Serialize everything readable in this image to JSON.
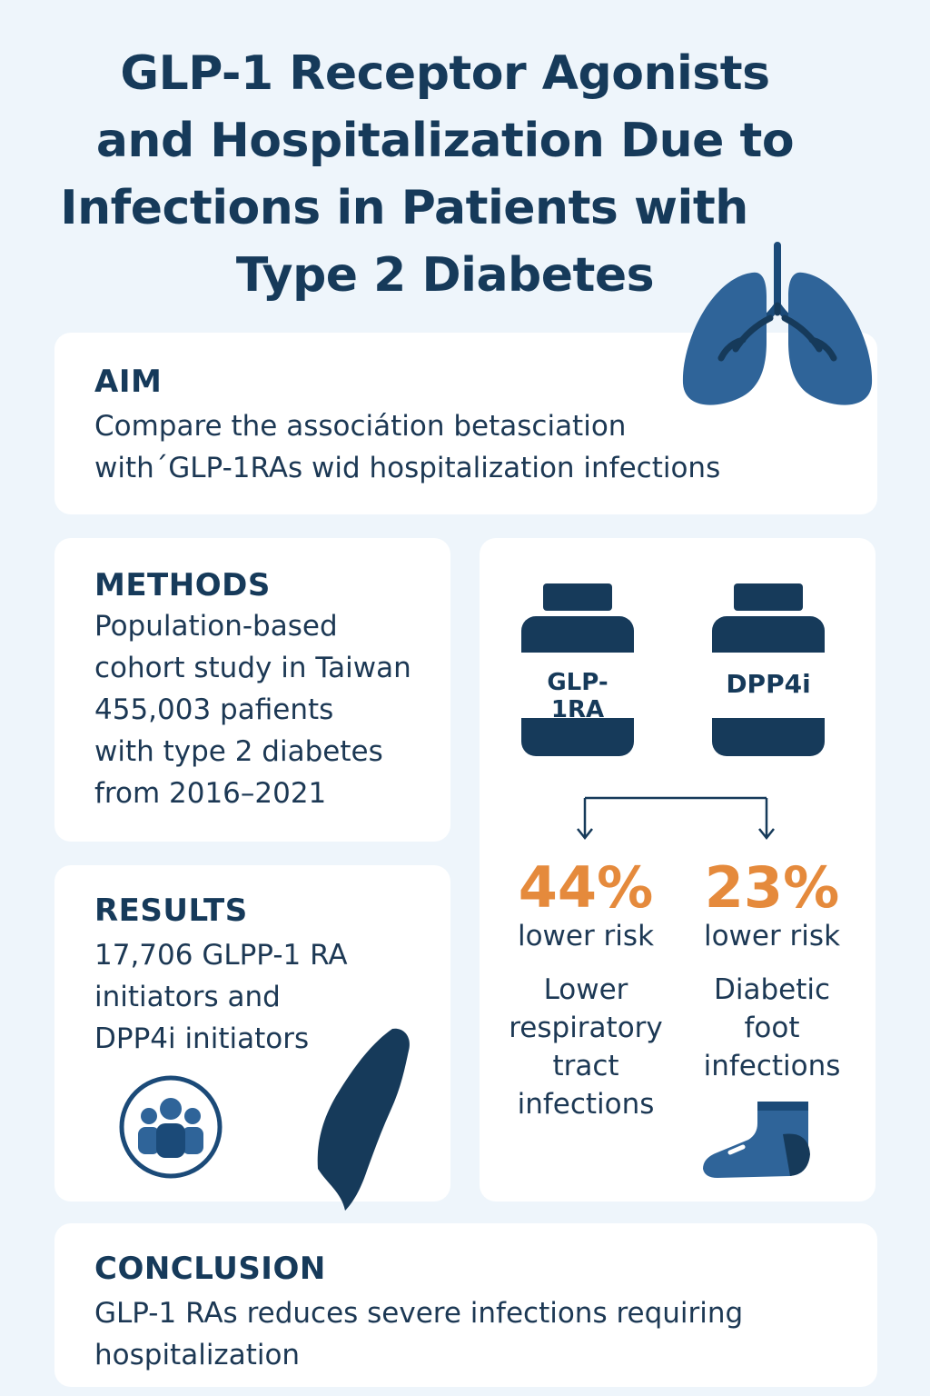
{
  "title": {
    "line1": "GLP-1 Receptor Agonists",
    "line2": "and Hospitalization Due to",
    "line3": "Infections in Patients with",
    "line4": "Type 2 Diabetes"
  },
  "aim": {
    "heading": "AIM",
    "line1": "Compare the associátion betasciation",
    "line2": "with´GLP-1RAs wid hospitalization infections"
  },
  "methods": {
    "heading": "METHODS",
    "line1": "Population-based",
    "line2": "cohort study in Taiwan",
    "line3": "455,003 pafients",
    "line4": "with type 2 diabetes",
    "line5": "from 2016–2021"
  },
  "results": {
    "heading": "RESULTS",
    "line1": "17,706 GLPP-1 RA",
    "line2": "initiators and",
    "line3": "DPP4i initiators"
  },
  "drugs": {
    "bottle1_label": "GLP-1RA",
    "bottle2_label": "DPP4i",
    "outcome1": {
      "pct": "44%",
      "risk": "lower risk",
      "line1": "Lower",
      "line2": "respiratory",
      "line3": "tract",
      "line4": "infections"
    },
    "outcome2": {
      "pct": "23%",
      "risk": "lower risk",
      "line1": "Diabetic",
      "line2": "foot",
      "line3": "infections"
    }
  },
  "conclusion": {
    "heading": "CONCLUSION",
    "line1": "GLP-1 RAs reduces severe infections requiring",
    "line2": "hospitalization"
  },
  "colors": {
    "navy": "#163a5a",
    "blue": "#2c5f8e",
    "orange": "#e58a3c",
    "background": "#eef5fb"
  },
  "icons": [
    "lungs-icon",
    "people-icon",
    "taiwan-map-icon",
    "foot-icon",
    "pill-bottle-icon",
    "arrow-down-icon"
  ]
}
